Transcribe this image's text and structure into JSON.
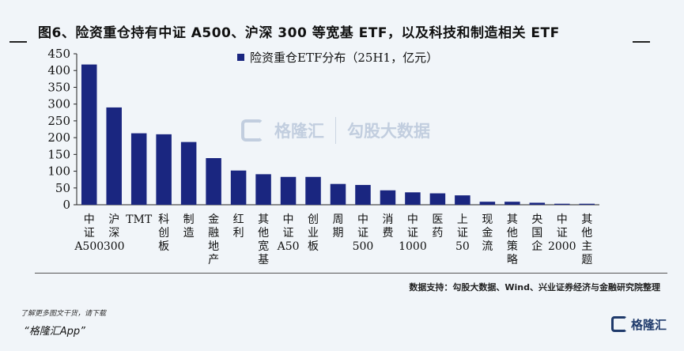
{
  "figure": {
    "title": "图6、险资重仓持有中证 A500、沪深 300 等宽基 ETF，以及科技和制造相关 ETF",
    "source_note": "数据支持：勾股大数据、Wind、兴业证券经济与金融研究院整理"
  },
  "footer": {
    "prompt": "了解更多图文干货，请下载",
    "app_name": "“格隆汇App”",
    "logo_text": "格隆汇"
  },
  "watermark": {
    "left_text": "格隆汇",
    "right_text": "勾股大数据"
  },
  "colors": {
    "bar": "#1a2680",
    "axis": "#222222"
  },
  "chart_data": {
    "type": "bar",
    "title": "",
    "xlabel": "",
    "ylabel": "",
    "ylim": [
      0,
      450
    ],
    "yticks": [
      0,
      50,
      100,
      150,
      200,
      250,
      300,
      350,
      400,
      450
    ],
    "grid": false,
    "legend_position": "top-center",
    "categories": [
      "中证A500",
      "沪深300",
      "TMT",
      "科创板",
      "制造",
      "金融地产",
      "红利",
      "其他宽基",
      "中证A50",
      "创业板",
      "周期",
      "中证500",
      "消费",
      "中证1000",
      "医药",
      "上证50",
      "现金流",
      "其他策略",
      "央国企",
      "中证2000",
      "其他主题"
    ],
    "series": [
      {
        "name": "险资重仓ETF分布（25H1，亿元）",
        "values": [
          418,
          290,
          213,
          210,
          187,
          139,
          102,
          91,
          83,
          83,
          62,
          59,
          43,
          37,
          34,
          28,
          9,
          9,
          6,
          3,
          3
        ]
      }
    ]
  }
}
